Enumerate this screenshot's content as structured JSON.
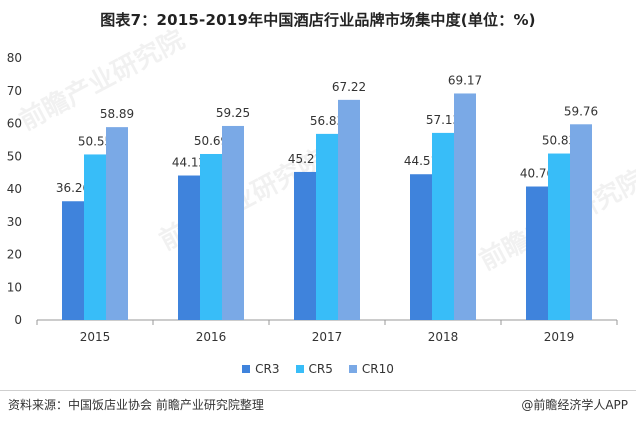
{
  "title": "图表7：2015-2019年中国酒店行业品牌市场集中度(单位：%)",
  "source": "资料来源：中国饭店业协会 前瞻产业研究院整理",
  "brand": "@前瞻经济学人APP",
  "watermark_text": "前瞻产业研究院",
  "colors": {
    "CR3": "#3f83dc",
    "CR5": "#38bdf8",
    "CR10": "#7aa9e6"
  },
  "chart_data": {
    "type": "bar",
    "categories": [
      "2015",
      "2016",
      "2017",
      "2018",
      "2019"
    ],
    "series": [
      {
        "name": "CR3",
        "values": [
          36.26,
          44.12,
          45.21,
          44.51,
          40.76
        ]
      },
      {
        "name": "CR5",
        "values": [
          50.55,
          50.69,
          56.83,
          57.13,
          50.83
        ]
      },
      {
        "name": "CR10",
        "values": [
          58.89,
          59.25,
          67.22,
          69.17,
          59.76
        ]
      }
    ],
    "ylim": [
      0,
      80
    ],
    "yticks": [
      0,
      10,
      20,
      30,
      40,
      50,
      60,
      70,
      80
    ],
    "grid": false,
    "legend_position": "bottom"
  }
}
